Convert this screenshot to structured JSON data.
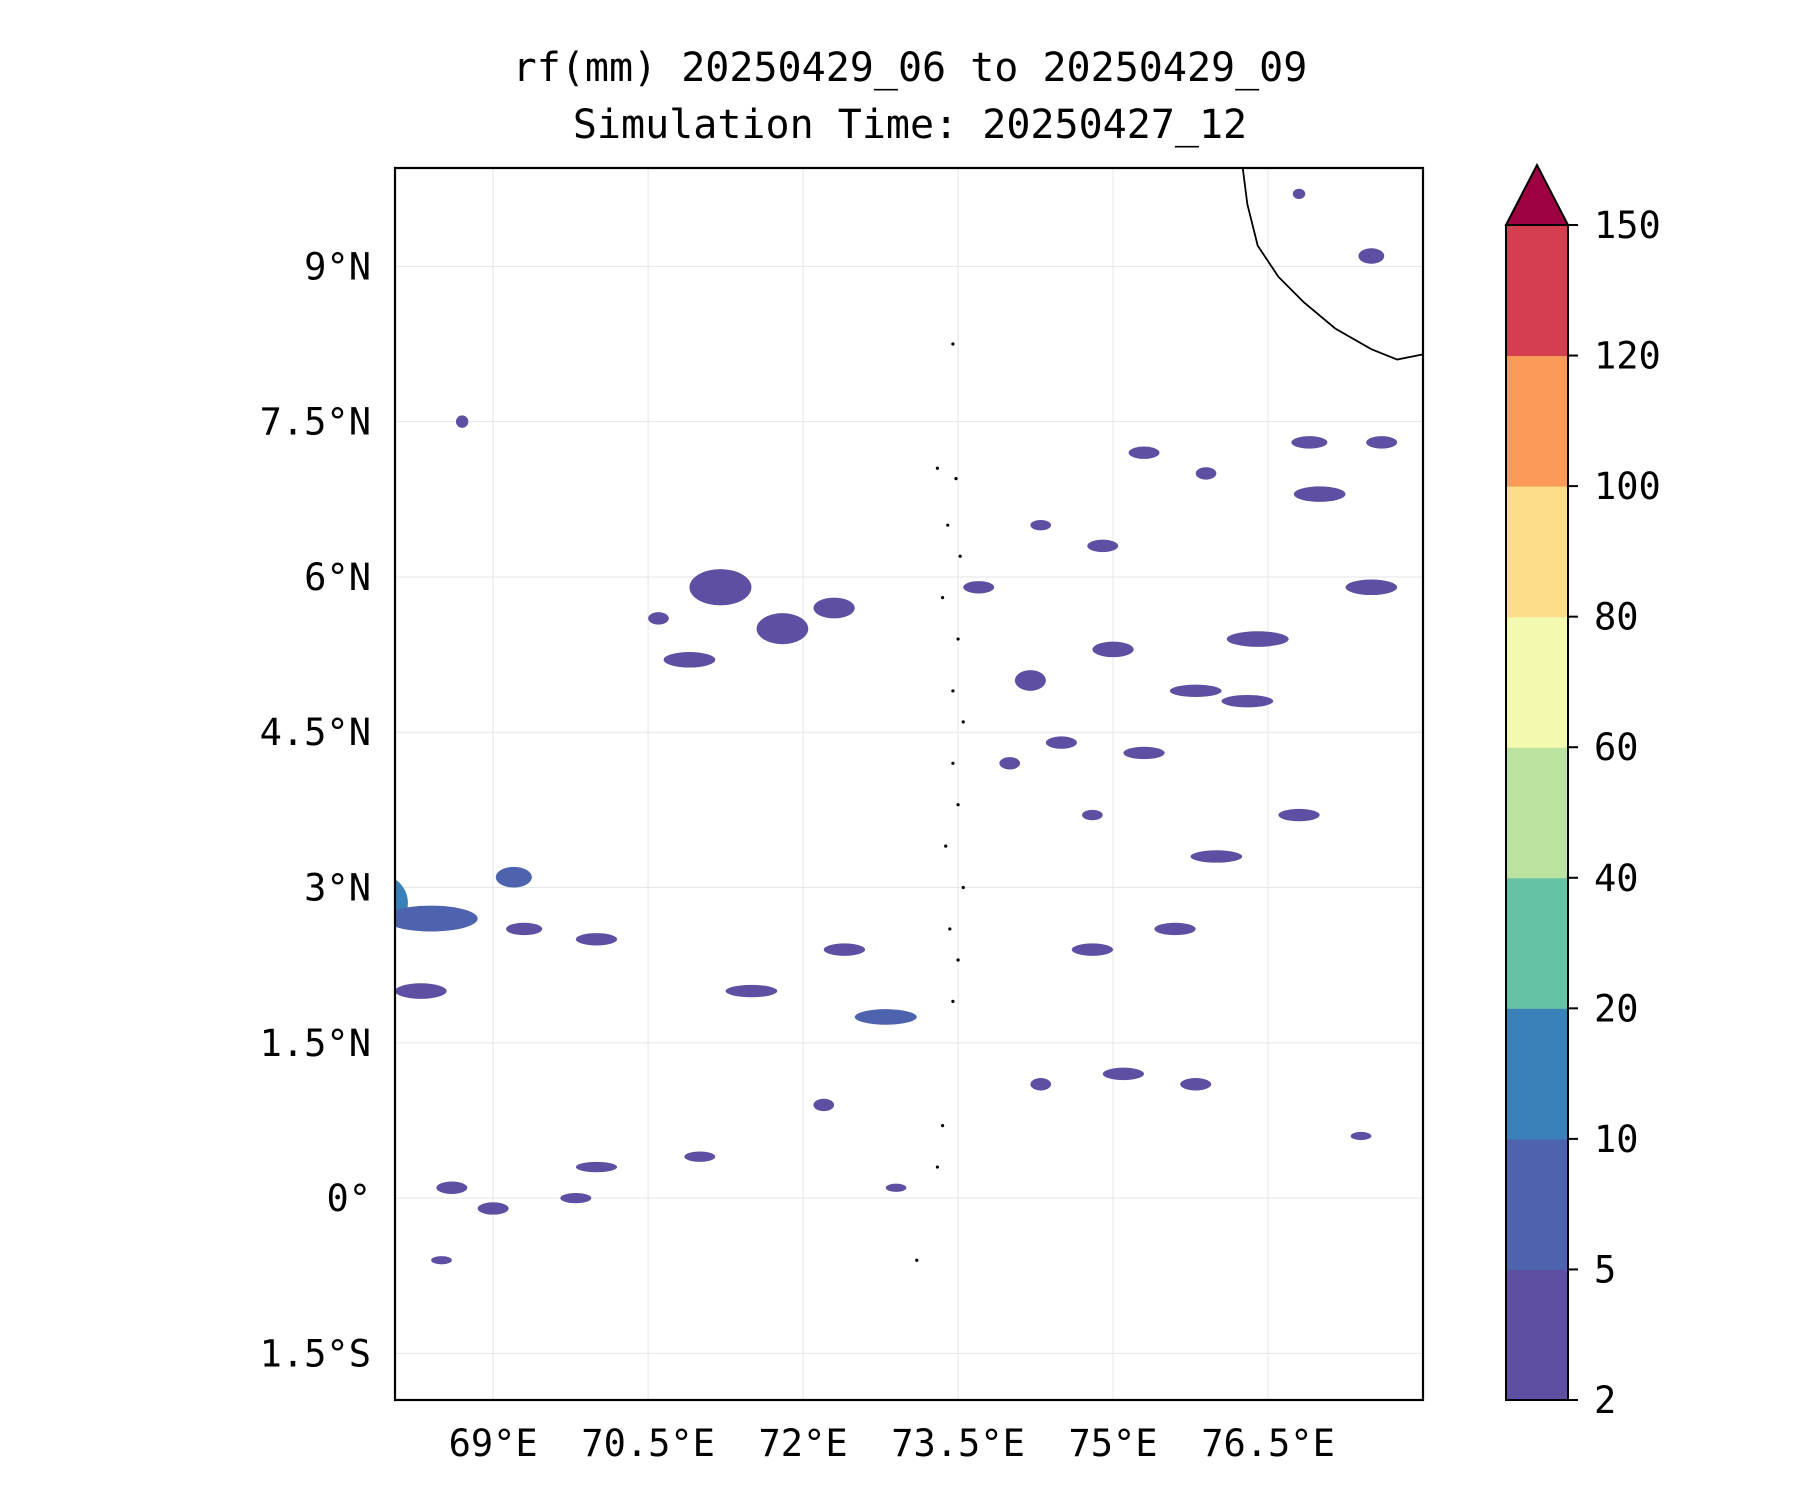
{
  "title": {
    "line1": "rf(mm) 20250429_06 to 20250429_09",
    "line2": "Simulation Time: 20250427_12"
  },
  "map": {
    "lon_range": [
      68.05,
      78.0
    ],
    "lat_range": [
      -1.95,
      9.95
    ],
    "lon_ticks": [
      {
        "value": 69.0,
        "label": "69°E"
      },
      {
        "value": 70.5,
        "label": "70.5°E"
      },
      {
        "value": 72.0,
        "label": "72°E"
      },
      {
        "value": 73.5,
        "label": "73.5°E"
      },
      {
        "value": 75.0,
        "label": "75°E"
      },
      {
        "value": 76.5,
        "label": "76.5°E"
      }
    ],
    "lat_ticks": [
      {
        "value": 9.0,
        "label": "9°N"
      },
      {
        "value": 7.5,
        "label": "7.5°N"
      },
      {
        "value": 6.0,
        "label": "6°N"
      },
      {
        "value": 4.5,
        "label": "4.5°N"
      },
      {
        "value": 3.0,
        "label": "3°N"
      },
      {
        "value": 1.5,
        "label": "1.5°N"
      },
      {
        "value": 0.0,
        "label": "0°"
      },
      {
        "value": -1.5,
        "label": "1.5°S"
      }
    ],
    "gridlines": true
  },
  "colorbar": {
    "levels": [
      "2",
      "5",
      "10",
      "20",
      "40",
      "60",
      "80",
      "100",
      "120",
      "150"
    ],
    "colors": [
      "#5e4fa2",
      "#4e63ad",
      "#3a80b9",
      "#66c2a5",
      "#bde3a0",
      "#f3f9ae",
      "#fddd8a",
      "#f99a57",
      "#d53e4f"
    ],
    "extend_color": "#9e0142",
    "extend": "max"
  },
  "rain_patches": [
    {
      "lon": 67.9,
      "lat": 2.85,
      "w": 0.55,
      "h": 0.55,
      "level": 2
    },
    {
      "lon": 68.4,
      "lat": 2.7,
      "w": 0.9,
      "h": 0.25,
      "level": 1
    },
    {
      "lon": 69.2,
      "lat": 3.1,
      "w": 0.35,
      "h": 0.2,
      "level": 1
    },
    {
      "lon": 68.3,
      "lat": 2.0,
      "w": 0.5,
      "h": 0.15,
      "level": 0
    },
    {
      "lon": 69.3,
      "lat": 2.6,
      "w": 0.35,
      "h": 0.12,
      "level": 0
    },
    {
      "lon": 70.0,
      "lat": 2.5,
      "w": 0.4,
      "h": 0.12,
      "level": 0
    },
    {
      "lon": 71.5,
      "lat": 2.0,
      "w": 0.5,
      "h": 0.12,
      "level": 0
    },
    {
      "lon": 72.8,
      "lat": 1.75,
      "w": 0.6,
      "h": 0.15,
      "level": 1
    },
    {
      "lon": 72.4,
      "lat": 2.4,
      "w": 0.4,
      "h": 0.12,
      "level": 0
    },
    {
      "lon": 71.2,
      "lat": 5.9,
      "w": 0.6,
      "h": 0.35,
      "level": 0
    },
    {
      "lon": 70.9,
      "lat": 5.2,
      "w": 0.5,
      "h": 0.15,
      "level": 0
    },
    {
      "lon": 71.8,
      "lat": 5.5,
      "w": 0.5,
      "h": 0.3,
      "level": 0
    },
    {
      "lon": 72.3,
      "lat": 5.7,
      "w": 0.4,
      "h": 0.2,
      "level": 0
    },
    {
      "lon": 70.6,
      "lat": 5.6,
      "w": 0.2,
      "h": 0.12,
      "level": 0
    },
    {
      "lon": 74.2,
      "lat": 5.0,
      "w": 0.3,
      "h": 0.2,
      "level": 0
    },
    {
      "lon": 75.0,
      "lat": 5.3,
      "w": 0.4,
      "h": 0.15,
      "level": 0
    },
    {
      "lon": 75.8,
      "lat": 4.9,
      "w": 0.5,
      "h": 0.12,
      "level": 0
    },
    {
      "lon": 76.4,
      "lat": 5.4,
      "w": 0.6,
      "h": 0.15,
      "level": 0
    },
    {
      "lon": 76.3,
      "lat": 4.8,
      "w": 0.5,
      "h": 0.12,
      "level": 0
    },
    {
      "lon": 77.5,
      "lat": 5.9,
      "w": 0.5,
      "h": 0.15,
      "level": 0
    },
    {
      "lon": 77.0,
      "lat": 6.8,
      "w": 0.5,
      "h": 0.15,
      "level": 0
    },
    {
      "lon": 76.9,
      "lat": 7.3,
      "w": 0.35,
      "h": 0.12,
      "level": 0
    },
    {
      "lon": 77.6,
      "lat": 7.3,
      "w": 0.3,
      "h": 0.12,
      "level": 0
    },
    {
      "lon": 76.8,
      "lat": 3.7,
      "w": 0.4,
      "h": 0.12,
      "level": 0
    },
    {
      "lon": 76.0,
      "lat": 3.3,
      "w": 0.5,
      "h": 0.12,
      "level": 0
    },
    {
      "lon": 75.6,
      "lat": 2.6,
      "w": 0.4,
      "h": 0.12,
      "level": 0
    },
    {
      "lon": 74.8,
      "lat": 2.4,
      "w": 0.4,
      "h": 0.12,
      "level": 0
    },
    {
      "lon": 74.3,
      "lat": 1.1,
      "w": 0.2,
      "h": 0.12,
      "level": 0
    },
    {
      "lon": 75.1,
      "lat": 1.2,
      "w": 0.4,
      "h": 0.12,
      "level": 0
    },
    {
      "lon": 75.8,
      "lat": 1.1,
      "w": 0.3,
      "h": 0.12,
      "level": 0
    },
    {
      "lon": 71.0,
      "lat": 0.4,
      "w": 0.3,
      "h": 0.1,
      "level": 0
    },
    {
      "lon": 70.0,
      "lat": 0.3,
      "w": 0.4,
      "h": 0.1,
      "level": 0
    },
    {
      "lon": 68.6,
      "lat": 0.1,
      "w": 0.3,
      "h": 0.12,
      "level": 0
    },
    {
      "lon": 69.0,
      "lat": -0.1,
      "w": 0.3,
      "h": 0.12,
      "level": 0
    },
    {
      "lon": 69.8,
      "lat": 0.0,
      "w": 0.3,
      "h": 0.1,
      "level": 0
    },
    {
      "lon": 72.2,
      "lat": 0.9,
      "w": 0.2,
      "h": 0.12,
      "level": 0
    },
    {
      "lon": 68.5,
      "lat": -0.6,
      "w": 0.2,
      "h": 0.08,
      "level": 0
    },
    {
      "lon": 72.9,
      "lat": 0.1,
      "w": 0.2,
      "h": 0.08,
      "level": 0
    },
    {
      "lon": 77.4,
      "lat": 0.6,
      "w": 0.2,
      "h": 0.08,
      "level": 0
    },
    {
      "lon": 68.7,
      "lat": 7.5,
      "w": 0.12,
      "h": 0.12,
      "level": 0
    },
    {
      "lon": 75.3,
      "lat": 7.2,
      "w": 0.3,
      "h": 0.12,
      "level": 0
    },
    {
      "lon": 75.9,
      "lat": 7.0,
      "w": 0.2,
      "h": 0.12,
      "level": 0
    },
    {
      "lon": 74.9,
      "lat": 6.3,
      "w": 0.3,
      "h": 0.12,
      "level": 0
    },
    {
      "lon": 74.3,
      "lat": 6.5,
      "w": 0.2,
      "h": 0.1,
      "level": 0
    },
    {
      "lon": 73.7,
      "lat": 5.9,
      "w": 0.3,
      "h": 0.12,
      "level": 0
    },
    {
      "lon": 74.0,
      "lat": 4.2,
      "w": 0.2,
      "h": 0.12,
      "level": 0
    },
    {
      "lon": 74.5,
      "lat": 4.4,
      "w": 0.3,
      "h": 0.12,
      "level": 0
    },
    {
      "lon": 75.3,
      "lat": 4.3,
      "w": 0.4,
      "h": 0.12,
      "level": 0
    },
    {
      "lon": 74.8,
      "lat": 3.7,
      "w": 0.2,
      "h": 0.1,
      "level": 0
    },
    {
      "lon": 77.5,
      "lat": 9.1,
      "w": 0.25,
      "h": 0.15,
      "level": 0
    },
    {
      "lon": 76.8,
      "lat": 9.7,
      "w": 0.12,
      "h": 0.1,
      "level": 0
    }
  ],
  "coastline": {
    "india": [
      [
        76.25,
        9.99
      ],
      [
        76.3,
        9.6
      ],
      [
        76.4,
        9.2
      ],
      [
        76.6,
        8.9
      ],
      [
        76.85,
        8.65
      ],
      [
        77.15,
        8.4
      ],
      [
        77.5,
        8.2
      ],
      [
        77.75,
        8.1
      ],
      [
        78.0,
        8.15
      ]
    ],
    "islands": [
      [
        73.45,
        8.25
      ],
      [
        73.3,
        7.05
      ],
      [
        73.48,
        6.95
      ],
      [
        73.4,
        6.5
      ],
      [
        73.52,
        6.2
      ],
      [
        73.35,
        5.8
      ],
      [
        73.5,
        5.4
      ],
      [
        73.45,
        4.9
      ],
      [
        73.55,
        4.6
      ],
      [
        73.45,
        4.2
      ],
      [
        73.5,
        3.8
      ],
      [
        73.38,
        3.4
      ],
      [
        73.55,
        3.0
      ],
      [
        73.42,
        2.6
      ],
      [
        73.5,
        2.3
      ],
      [
        73.45,
        1.9
      ],
      [
        73.35,
        0.7
      ],
      [
        73.3,
        0.3
      ],
      [
        73.1,
        -0.6
      ]
    ]
  }
}
